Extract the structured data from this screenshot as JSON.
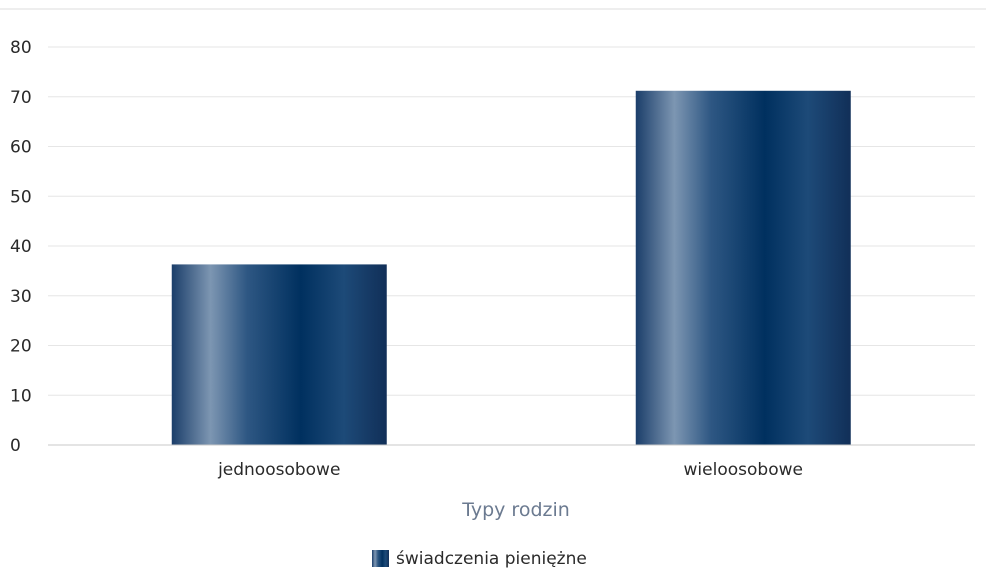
{
  "chart_data": {
    "type": "bar",
    "categories": [
      "jednoosobowe",
      "wieloosobowe"
    ],
    "series": [
      {
        "name": "świadczenia pieniężne",
        "values": [
          36.3,
          71.2
        ]
      }
    ],
    "xlabel": "Typy rodzin",
    "ylabel": "",
    "ylim": [
      0,
      80
    ],
    "yticks": [
      "0",
      "10",
      "20",
      "30",
      "40",
      "50",
      "60",
      "70",
      "80"
    ],
    "grid": true,
    "legend": "bottom-center",
    "colors": {
      "bar_dark": "#00305f",
      "bar_mid": "#1d4a78",
      "bar_light": "#7d96b2",
      "grid": "#e6e6e6",
      "axis": "#c8c8c8"
    }
  }
}
